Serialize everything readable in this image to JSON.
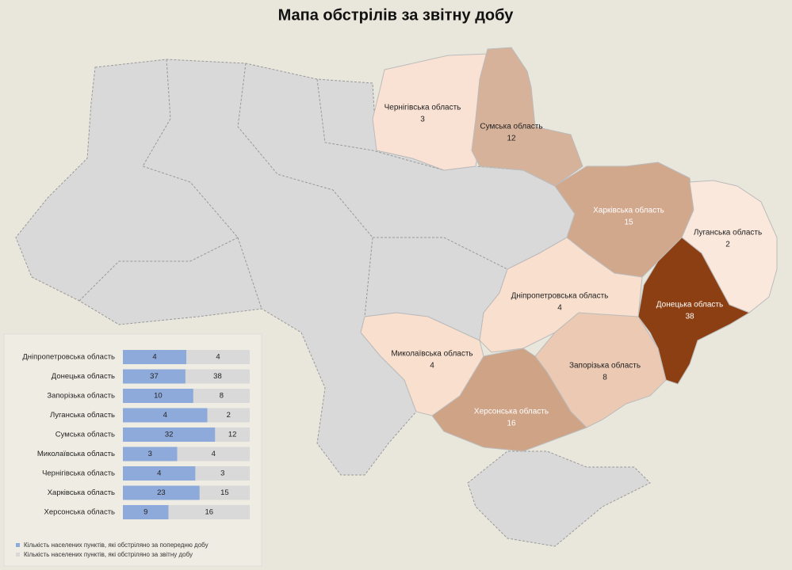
{
  "title": "Мапа обстрілів за звітну добу",
  "map": {
    "regions": [
      {
        "name": "Чернігівська область",
        "value": 3,
        "color": "#f9e2d3"
      },
      {
        "name": "Сумська область",
        "value": 12,
        "color": "#d7b29b"
      },
      {
        "name": "Харківська область",
        "value": 15,
        "color": "#d2a88d"
      },
      {
        "name": "Луганська область",
        "value": 2,
        "color": "#fbe8dc"
      },
      {
        "name": "Донецька область",
        "value": 38,
        "color": "#8b3f12"
      },
      {
        "name": "Дніпропетровська область",
        "value": 4,
        "color": "#f8dfce"
      },
      {
        "name": "Запорізька область",
        "value": 8,
        "color": "#ebc9b3"
      },
      {
        "name": "Херсонська область",
        "value": 16,
        "color": "#cfa386"
      },
      {
        "name": "Миколаївська область",
        "value": 4,
        "color": "#f8dfce"
      }
    ]
  },
  "chart_data": {
    "type": "bar",
    "stacked": "percent",
    "categories": [
      "Дніпропетровська область",
      "Донецька область",
      "Запорізька область",
      "Луганська область",
      "Сумська область",
      "Миколаївська область",
      "Чернігівська область",
      "Харківська область",
      "Херсонська область"
    ],
    "series": [
      {
        "name": "Кількість населених пунктів, які обстріляно за попередню добу",
        "color": "#8eaadb",
        "values": [
          4,
          37,
          10,
          4,
          32,
          3,
          4,
          23,
          9
        ]
      },
      {
        "name": "Кількість населених пунктів, які обстріляно за звітну добу",
        "color": "#d9d9d9",
        "values": [
          4,
          38,
          8,
          2,
          12,
          4,
          3,
          15,
          16
        ]
      }
    ]
  }
}
